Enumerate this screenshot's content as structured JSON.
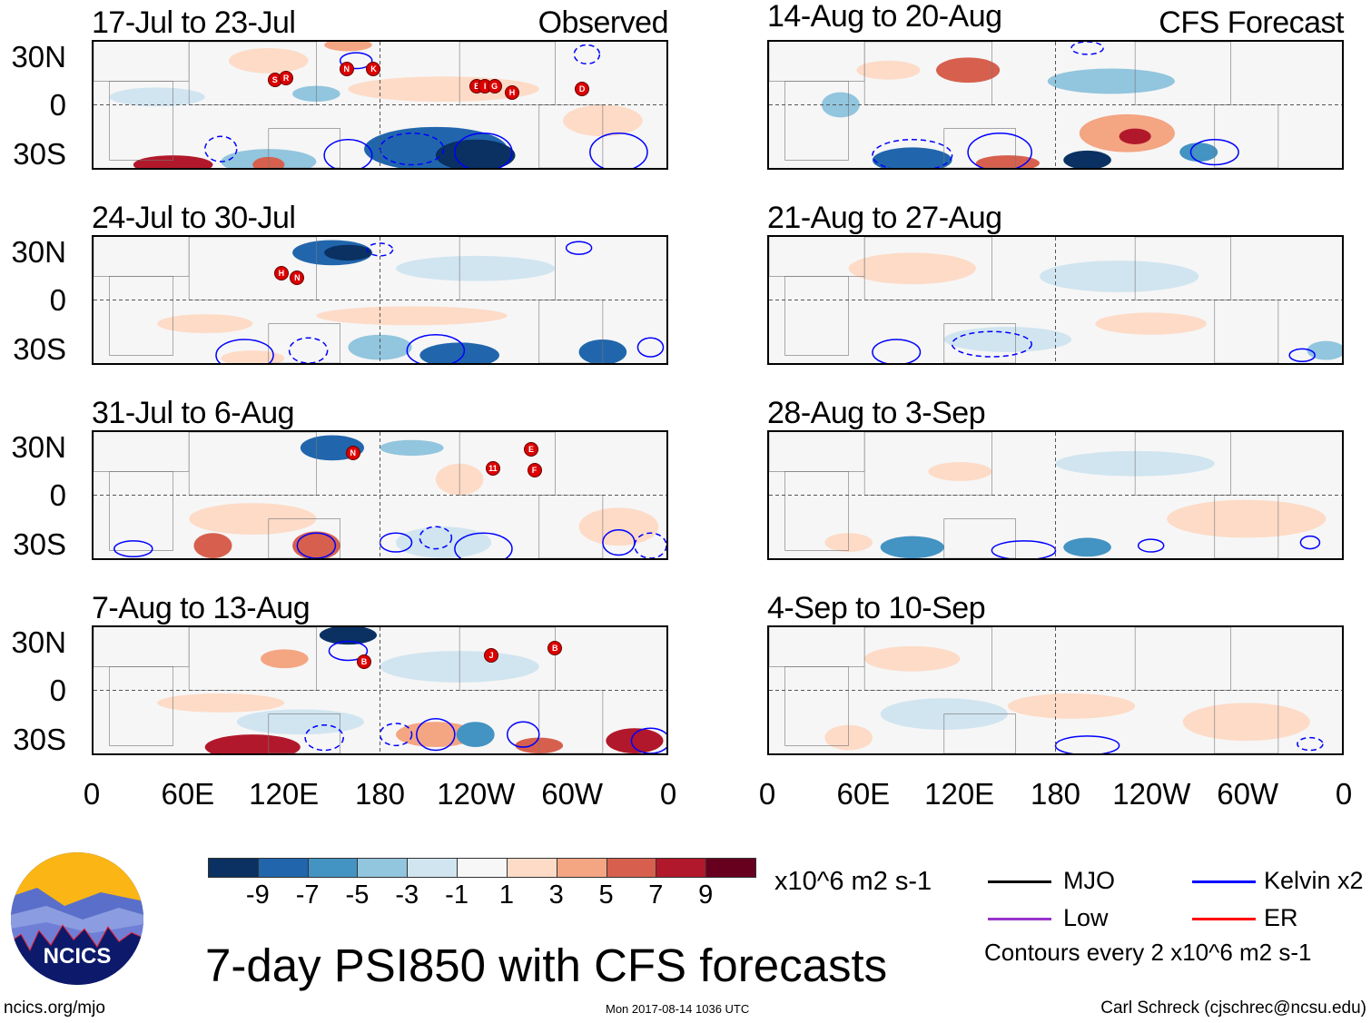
{
  "panels_left": [
    {
      "title": "17-Jul to 23-Jul",
      "tag": "Observed",
      "storms": [
        {
          "l": "S",
          "lon": 114,
          "lat": 16
        },
        {
          "l": "R",
          "lon": 121,
          "lat": 17
        },
        {
          "l": "N",
          "lon": 159,
          "lat": 23
        },
        {
          "l": "K",
          "lon": 176,
          "lat": 23
        },
        {
          "l": "B",
          "lon": 241,
          "lat": 12
        },
        {
          "l": "I",
          "lon": 246,
          "lat": 12
        },
        {
          "l": "G",
          "lon": 252,
          "lat": 12
        },
        {
          "l": "H",
          "lon": 263,
          "lat": 8
        },
        {
          "l": "D",
          "lon": 307,
          "lat": 10
        }
      ],
      "blobs": [
        {
          "lon": 110,
          "lat": -36,
          "a": 30,
          "b": 8,
          "v": -3
        },
        {
          "lon": 50,
          "lat": -38,
          "a": 25,
          "b": 6,
          "v": 9
        },
        {
          "lon": 110,
          "lat": -38,
          "a": 10,
          "b": 5,
          "v": 7
        },
        {
          "lon": 215,
          "lat": -28,
          "a": 45,
          "b": 14,
          "v": -7
        },
        {
          "lon": 240,
          "lat": -32,
          "a": 25,
          "b": 10,
          "v": -9
        },
        {
          "lon": 160,
          "lat": 38,
          "a": 15,
          "b": 4,
          "v": 5
        },
        {
          "lon": 110,
          "lat": 28,
          "a": 25,
          "b": 8,
          "v": 3
        },
        {
          "lon": 220,
          "lat": 10,
          "a": 60,
          "b": 8,
          "v": 1.5
        },
        {
          "lon": 320,
          "lat": -10,
          "a": 25,
          "b": 10,
          "v": 1.5
        },
        {
          "lon": 40,
          "lat": 5,
          "a": 30,
          "b": 6,
          "v": -1.5
        },
        {
          "lon": 140,
          "lat": 7,
          "a": 15,
          "b": 5,
          "v": -3
        }
      ],
      "contours": [
        {
          "lon": 160,
          "lat": -32,
          "a": 15,
          "b": 10,
          "d": false
        },
        {
          "lon": 245,
          "lat": -30,
          "a": 18,
          "b": 12,
          "d": false
        },
        {
          "lon": 330,
          "lat": -30,
          "a": 18,
          "b": 12,
          "d": false
        },
        {
          "lon": 200,
          "lat": -28,
          "a": 20,
          "b": 10,
          "d": true
        },
        {
          "lon": 165,
          "lat": 28,
          "a": 10,
          "b": 5,
          "d": false
        },
        {
          "lon": 310,
          "lat": 32,
          "a": 8,
          "b": 6,
          "d": true
        },
        {
          "lon": 80,
          "lat": -28,
          "a": 10,
          "b": 8,
          "d": true
        }
      ]
    },
    {
      "title": "24-Jul to 30-Jul",
      "storms": [
        {
          "l": "H",
          "lon": 118,
          "lat": 17
        },
        {
          "l": "N",
          "lon": 128,
          "lat": 14
        }
      ],
      "blobs": [
        {
          "lon": 150,
          "lat": 30,
          "a": 25,
          "b": 8,
          "v": -7
        },
        {
          "lon": 160,
          "lat": 30,
          "a": 15,
          "b": 5,
          "v": -9
        },
        {
          "lon": 230,
          "lat": -35,
          "a": 25,
          "b": 8,
          "v": -7
        },
        {
          "lon": 320,
          "lat": -33,
          "a": 15,
          "b": 8,
          "v": -7
        },
        {
          "lon": 100,
          "lat": -37,
          "a": 20,
          "b": 5,
          "v": 3
        },
        {
          "lon": 200,
          "lat": -10,
          "a": 60,
          "b": 6,
          "v": 1.5
        },
        {
          "lon": 70,
          "lat": -15,
          "a": 30,
          "b": 6,
          "v": 1.5
        },
        {
          "lon": 240,
          "lat": 20,
          "a": 50,
          "b": 8,
          "v": -1.5
        },
        {
          "lon": 180,
          "lat": -30,
          "a": 20,
          "b": 8,
          "v": -3
        }
      ],
      "contours": [
        {
          "lon": 95,
          "lat": -35,
          "a": 18,
          "b": 10,
          "d": false
        },
        {
          "lon": 215,
          "lat": -32,
          "a": 18,
          "b": 10,
          "d": false
        },
        {
          "lon": 135,
          "lat": -32,
          "a": 12,
          "b": 8,
          "d": true
        },
        {
          "lon": 350,
          "lat": -30,
          "a": 8,
          "b": 6,
          "d": false
        },
        {
          "lon": 305,
          "lat": 33,
          "a": 8,
          "b": 4,
          "d": false
        },
        {
          "lon": 180,
          "lat": 32,
          "a": 8,
          "b": 4,
          "d": true
        }
      ]
    },
    {
      "title": "31-Jul to 6-Aug",
      "storms": [
        {
          "l": "N",
          "lon": 163,
          "lat": 27
        },
        {
          "l": "11",
          "lon": 251,
          "lat": 17
        },
        {
          "l": "E",
          "lon": 275,
          "lat": 29
        },
        {
          "l": "F",
          "lon": 277,
          "lat": 16
        }
      ],
      "blobs": [
        {
          "lon": 150,
          "lat": 30,
          "a": 20,
          "b": 8,
          "v": -7
        },
        {
          "lon": 75,
          "lat": -32,
          "a": 12,
          "b": 8,
          "v": 7
        },
        {
          "lon": 140,
          "lat": -32,
          "a": 15,
          "b": 9,
          "v": 7
        },
        {
          "lon": 230,
          "lat": 10,
          "a": 15,
          "b": 10,
          "v": 1.5
        },
        {
          "lon": 100,
          "lat": -15,
          "a": 40,
          "b": 10,
          "v": 1.5
        },
        {
          "lon": 330,
          "lat": -20,
          "a": 25,
          "b": 12,
          "v": 1.5
        },
        {
          "lon": 220,
          "lat": -30,
          "a": 30,
          "b": 10,
          "v": -1.5
        },
        {
          "lon": 200,
          "lat": 30,
          "a": 20,
          "b": 5,
          "v": -3
        }
      ],
      "contours": [
        {
          "lon": 140,
          "lat": -32,
          "a": 12,
          "b": 8,
          "d": false
        },
        {
          "lon": 190,
          "lat": -30,
          "a": 10,
          "b": 6,
          "d": false
        },
        {
          "lon": 215,
          "lat": -27,
          "a": 10,
          "b": 7,
          "d": true
        },
        {
          "lon": 245,
          "lat": -34,
          "a": 18,
          "b": 10,
          "d": false
        },
        {
          "lon": 330,
          "lat": -30,
          "a": 10,
          "b": 8,
          "d": false
        },
        {
          "lon": 350,
          "lat": -32,
          "a": 10,
          "b": 8,
          "d": true
        },
        {
          "lon": 25,
          "lat": -34,
          "a": 12,
          "b": 5,
          "d": false
        }
      ]
    },
    {
      "title": "7-Aug to 13-Aug",
      "storms": [
        {
          "l": "B",
          "lon": 170,
          "lat": 18
        },
        {
          "l": "J",
          "lon": 250,
          "lat": 22
        },
        {
          "l": "B",
          "lon": 290,
          "lat": 27
        }
      ],
      "blobs": [
        {
          "lon": 160,
          "lat": 35,
          "a": 18,
          "b": 6,
          "v": -9
        },
        {
          "lon": 120,
          "lat": 20,
          "a": 15,
          "b": 6,
          "v": 5
        },
        {
          "lon": 100,
          "lat": -36,
          "a": 30,
          "b": 8,
          "v": 9
        },
        {
          "lon": 215,
          "lat": -28,
          "a": 25,
          "b": 8,
          "v": 5
        },
        {
          "lon": 340,
          "lat": -32,
          "a": 18,
          "b": 8,
          "v": 9
        },
        {
          "lon": 280,
          "lat": -35,
          "a": 15,
          "b": 5,
          "v": 7
        },
        {
          "lon": 240,
          "lat": -28,
          "a": 12,
          "b": 8,
          "v": -5
        },
        {
          "lon": 130,
          "lat": -20,
          "a": 40,
          "b": 8,
          "v": -1.5
        },
        {
          "lon": 230,
          "lat": 15,
          "a": 50,
          "b": 10,
          "v": -1.5
        },
        {
          "lon": 80,
          "lat": -8,
          "a": 40,
          "b": 6,
          "v": 1.5
        }
      ],
      "contours": [
        {
          "lon": 215,
          "lat": -28,
          "a": 12,
          "b": 10,
          "d": false
        },
        {
          "lon": 160,
          "lat": 25,
          "a": 12,
          "b": 6,
          "d": false
        },
        {
          "lon": 145,
          "lat": -30,
          "a": 12,
          "b": 8,
          "d": true
        },
        {
          "lon": 190,
          "lat": -28,
          "a": 10,
          "b": 7,
          "d": true
        },
        {
          "lon": 270,
          "lat": -28,
          "a": 10,
          "b": 8,
          "d": false
        },
        {
          "lon": 350,
          "lat": -32,
          "a": 12,
          "b": 8,
          "d": false
        }
      ]
    }
  ],
  "panels_right": [
    {
      "title": "14-Aug to 20-Aug",
      "tag": "CFS Forecast",
      "storms": [],
      "blobs": [
        {
          "lon": 125,
          "lat": 22,
          "a": 20,
          "b": 8,
          "v": 7
        },
        {
          "lon": 75,
          "lat": 22,
          "a": 20,
          "b": 6,
          "v": 3
        },
        {
          "lon": 225,
          "lat": -18,
          "a": 30,
          "b": 12,
          "v": 5
        },
        {
          "lon": 230,
          "lat": -20,
          "a": 10,
          "b": 5,
          "v": 9
        },
        {
          "lon": 90,
          "lat": -35,
          "a": 25,
          "b": 8,
          "v": -7
        },
        {
          "lon": 200,
          "lat": -35,
          "a": 15,
          "b": 6,
          "v": -9
        },
        {
          "lon": 270,
          "lat": -30,
          "a": 12,
          "b": 6,
          "v": -5
        },
        {
          "lon": 150,
          "lat": -37,
          "a": 20,
          "b": 5,
          "v": 7
        },
        {
          "lon": 215,
          "lat": 15,
          "a": 40,
          "b": 8,
          "v": -3
        },
        {
          "lon": 45,
          "lat": 0,
          "a": 12,
          "b": 8,
          "v": -3
        }
      ],
      "contours": [
        {
          "lon": 90,
          "lat": -32,
          "a": 25,
          "b": 10,
          "d": true
        },
        {
          "lon": 145,
          "lat": -30,
          "a": 20,
          "b": 12,
          "d": false
        },
        {
          "lon": 280,
          "lat": -30,
          "a": 15,
          "b": 8,
          "d": false
        },
        {
          "lon": 200,
          "lat": 36,
          "a": 10,
          "b": 4,
          "d": true
        }
      ]
    },
    {
      "title": "21-Aug to 27-Aug",
      "storms": [],
      "blobs": [
        {
          "lon": 240,
          "lat": -15,
          "a": 35,
          "b": 7,
          "v": 3
        },
        {
          "lon": 90,
          "lat": 20,
          "a": 40,
          "b": 10,
          "v": 1.5
        },
        {
          "lon": 220,
          "lat": 15,
          "a": 50,
          "b": 10,
          "v": -1.5
        },
        {
          "lon": 350,
          "lat": -32,
          "a": 12,
          "b": 6,
          "v": -3
        },
        {
          "lon": 150,
          "lat": -25,
          "a": 40,
          "b": 8,
          "v": -1.5
        }
      ],
      "contours": [
        {
          "lon": 80,
          "lat": -33,
          "a": 15,
          "b": 8,
          "d": false
        },
        {
          "lon": 140,
          "lat": -28,
          "a": 25,
          "b": 8,
          "d": true
        },
        {
          "lon": 335,
          "lat": -35,
          "a": 8,
          "b": 4,
          "d": false
        }
      ]
    },
    {
      "title": "28-Aug to 3-Sep",
      "storms": [],
      "blobs": [
        {
          "lon": 120,
          "lat": 15,
          "a": 20,
          "b": 6,
          "v": 3
        },
        {
          "lon": 90,
          "lat": -33,
          "a": 20,
          "b": 7,
          "v": -5
        },
        {
          "lon": 200,
          "lat": -33,
          "a": 15,
          "b": 6,
          "v": -5
        },
        {
          "lon": 50,
          "lat": -30,
          "a": 15,
          "b": 6,
          "v": 3
        },
        {
          "lon": 300,
          "lat": -15,
          "a": 50,
          "b": 12,
          "v": 1.5
        },
        {
          "lon": 230,
          "lat": 20,
          "a": 50,
          "b": 8,
          "v": -1.5
        }
      ],
      "contours": [
        {
          "lon": 160,
          "lat": -35,
          "a": 20,
          "b": 6,
          "d": false
        },
        {
          "lon": 240,
          "lat": -32,
          "a": 8,
          "b": 4,
          "d": false
        },
        {
          "lon": 340,
          "lat": -30,
          "a": 6,
          "b": 4,
          "d": false
        }
      ]
    },
    {
      "title": "4-Sep to 10-Sep",
      "storms": [],
      "blobs": [
        {
          "lon": 90,
          "lat": 20,
          "a": 30,
          "b": 8,
          "v": 3
        },
        {
          "lon": 50,
          "lat": -30,
          "a": 15,
          "b": 8,
          "v": 3
        },
        {
          "lon": 110,
          "lat": -15,
          "a": 40,
          "b": 10,
          "v": -1.5
        },
        {
          "lon": 190,
          "lat": -10,
          "a": 40,
          "b": 8,
          "v": 1.5
        },
        {
          "lon": 300,
          "lat": -20,
          "a": 40,
          "b": 12,
          "v": 1.5
        }
      ],
      "contours": [
        {
          "lon": 200,
          "lat": -35,
          "a": 20,
          "b": 6,
          "d": false
        },
        {
          "lon": 340,
          "lat": -34,
          "a": 8,
          "b": 4,
          "d": true
        }
      ]
    }
  ],
  "lat_labels": [
    "30N",
    "0",
    "30S"
  ],
  "lon_labels": [
    "0",
    "60E",
    "120E",
    "180",
    "120W",
    "60W",
    "0"
  ],
  "colorbar": {
    "colors": [
      "#0a3161",
      "#2166ac",
      "#4393c3",
      "#92c5de",
      "#d1e5f0",
      "#f7f7f7",
      "#fddbc7",
      "#f4a582",
      "#d6604d",
      "#b2182b",
      "#67001f"
    ],
    "labels": [
      "-9",
      "-7",
      "-5",
      "-3",
      "-1",
      "1",
      "3",
      "5",
      "7",
      "9"
    ],
    "units": "x10^6 m2 s-1"
  },
  "legend": [
    {
      "label": "MJO",
      "color": "#000000"
    },
    {
      "label": "Kelvin x2",
      "color": "#0000ff"
    },
    {
      "label": "Low",
      "color": "#9933cc"
    },
    {
      "label": "ER",
      "color": "#ff0000"
    }
  ],
  "contour_note": "Contours every 2 x10^6 m2 s-1",
  "main_title": "7-day PSI850 with CFS forecasts",
  "logo_text": "NCICS",
  "footer": {
    "left": "ncics.org/mjo",
    "center": "Mon 2017-08-14 1036 UTC",
    "right": "Carl Schreck (cjschrec@ncsu.edu)"
  }
}
